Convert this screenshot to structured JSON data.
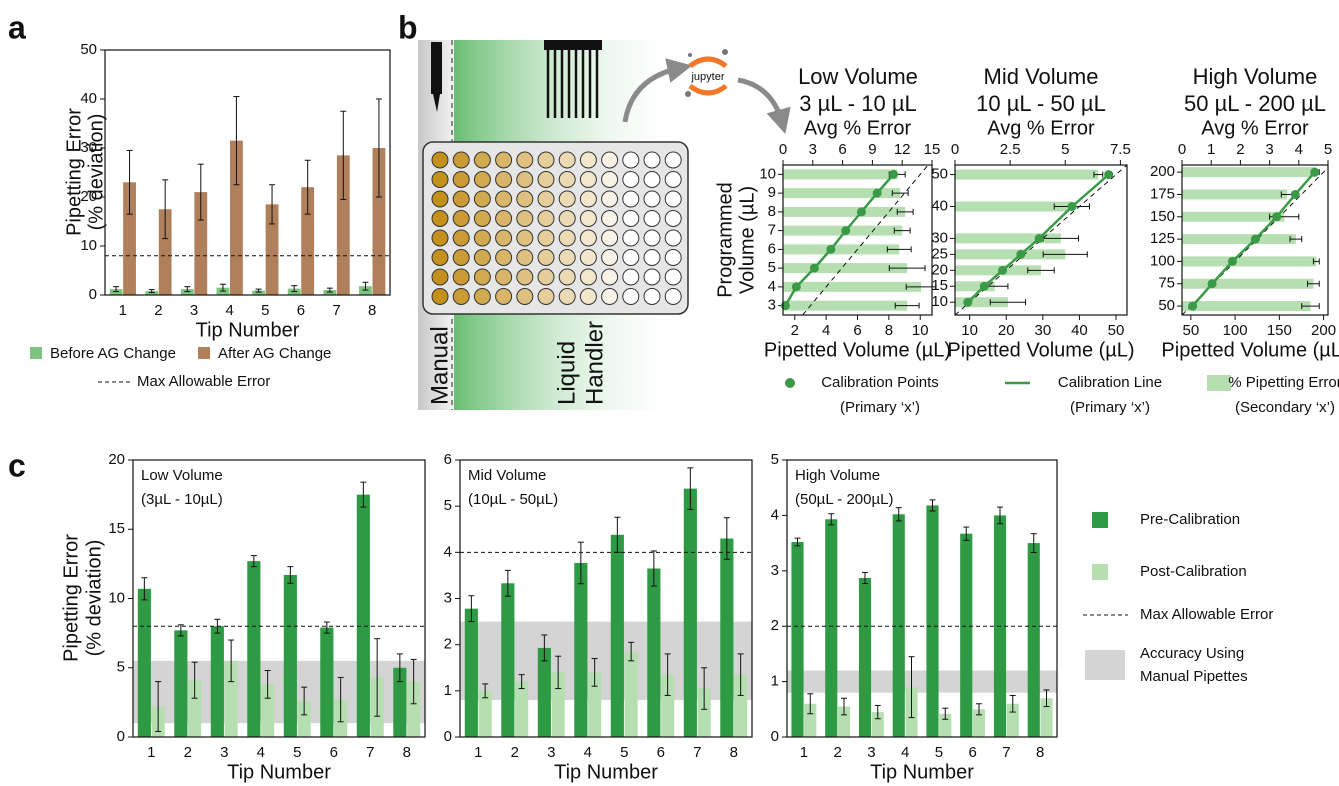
{
  "panel_labels": [
    "a",
    "b",
    "c"
  ],
  "diagram": {
    "manual": "Manual",
    "liquid_handler": [
      "Liquid",
      "Handler"
    ],
    "logo": "jupyter"
  },
  "chart_data": [
    {
      "type": "bar",
      "xlabel": "Tip Number",
      "ylabel": [
        "Pipetting Error",
        "(% deviation)"
      ],
      "categories": [
        "1",
        "2",
        "3",
        "4",
        "5",
        "6",
        "7",
        "8"
      ],
      "ylim": [
        0,
        50
      ],
      "yticks": [
        0,
        10,
        20,
        30,
        40,
        50
      ],
      "series": [
        {
          "name": "Before AG Change",
          "color": "#7cc47f",
          "values": [
            1.2,
            0.8,
            1.2,
            1.5,
            0.9,
            1.3,
            1.0,
            1.8
          ],
          "errors": [
            0.5,
            0.3,
            0.5,
            0.7,
            0.3,
            0.6,
            0.4,
            0.8
          ]
        },
        {
          "name": "After AG Change",
          "color": "#b0805c",
          "values": [
            23,
            17.5,
            21,
            31.5,
            18.5,
            22,
            28.5,
            30
          ],
          "errors": [
            6.5,
            6,
            5.7,
            9,
            4,
            5.5,
            9,
            10
          ]
        }
      ],
      "reference_line": {
        "name": "Max Allowable Error",
        "value": 8
      }
    },
    {
      "type": "calibration",
      "title": [
        "Low Volume",
        "3 µL - 10 µL"
      ],
      "x2label": "Avg % Error",
      "x2lim": [
        0,
        15
      ],
      "x2ticks": [
        0,
        3,
        6,
        9,
        12,
        15
      ],
      "xlabel": "Pipetted Volume (µL)",
      "xlim": [
        1.25,
        10.75
      ],
      "xticks": [
        2,
        4,
        6,
        8,
        10
      ],
      "ylabel": [
        "Programmed",
        "Volume (µL)"
      ],
      "ylim": [
        2.5,
        10.5
      ],
      "yticks": [
        3,
        4,
        5,
        6,
        7,
        8,
        9,
        10
      ],
      "color": "#3a9a47",
      "error_color": "#b5dfb0",
      "programmed": [
        3,
        4,
        5,
        6,
        7,
        8,
        9,
        10
      ],
      "pipetted": [
        1.4,
        2.1,
        3.25,
        4.3,
        5.25,
        6.25,
        7.25,
        8.3
      ],
      "error": [
        12.5,
        13.9,
        12.5,
        11.7,
        12,
        12.3,
        11.8,
        11.5
      ],
      "error_sd": [
        1.2,
        1.5,
        1.8,
        1.2,
        0.8,
        0.8,
        0.8,
        0.8
      ],
      "points_name": [
        "Calibration Points",
        "(Primary ‘x’)"
      ],
      "line_name": [
        "Calibration Line",
        "(Primary ‘x’)"
      ],
      "error_name": [
        "% Pipetting Error",
        "(Secondary ‘x’)"
      ]
    },
    {
      "type": "calibration",
      "title": [
        "Mid Volume",
        "10 µL - 50 µL"
      ],
      "x2label": "Avg % Error",
      "x2lim": [
        0,
        7.8
      ],
      "x2ticks": [
        0,
        2.5,
        5,
        7.5
      ],
      "xlabel": "Pipetted Volume (µL)",
      "xlim": [
        6,
        53
      ],
      "xticks": [
        10,
        20,
        30,
        40,
        50
      ],
      "ylim": [
        6,
        53
      ],
      "yticks": [
        10,
        15,
        20,
        25,
        30,
        40,
        50
      ],
      "color": "#3a9a47",
      "error_color": "#b5dfb0",
      "programmed": [
        10,
        15,
        20,
        25,
        30,
        40,
        50
      ],
      "pipetted": [
        9.5,
        14,
        19,
        24,
        29,
        38,
        48
      ],
      "error": [
        2.4,
        1.8,
        3.9,
        5.0,
        4.8,
        5.3,
        6.5
      ],
      "error_sd": [
        0.8,
        0.6,
        0.6,
        1.0,
        0.8,
        0.8,
        0.2
      ]
    },
    {
      "type": "calibration",
      "title": [
        "High Volume",
        "50 µL - 200 µL"
      ],
      "x2label": "Avg % Error",
      "x2lim": [
        0,
        5
      ],
      "x2ticks": [
        0,
        1,
        2,
        3,
        4,
        5
      ],
      "xlabel": "Pipetted Volume (µL)",
      "xlim": [
        40,
        205
      ],
      "xticks": [
        50,
        100,
        150,
        200
      ],
      "ylim": [
        40,
        208
      ],
      "yticks": [
        50,
        75,
        100,
        125,
        150,
        175,
        200
      ],
      "color": "#3a9a47",
      "error_color": "#b5dfb0",
      "programmed": [
        50,
        75,
        100,
        125,
        150,
        175,
        200
      ],
      "pipetted": [
        52,
        74,
        97,
        123,
        147,
        168,
        190
      ],
      "error": [
        4.4,
        4.5,
        4.6,
        3.9,
        3.5,
        3.6,
        4.6
      ],
      "error_sd": [
        0.3,
        0.2,
        0.1,
        0.2,
        0.5,
        0.2,
        0.1
      ]
    },
    {
      "type": "bar",
      "annotation": [
        "Low Volume",
        "(3µL - 10µL)"
      ],
      "xlabel": "Tip Number",
      "ylabel": [
        "Pipetting Error",
        "(% deviation)"
      ],
      "categories": [
        "1",
        "2",
        "3",
        "4",
        "5",
        "6",
        "7",
        "8"
      ],
      "ylim": [
        0,
        20
      ],
      "yticks": [
        0,
        5,
        10,
        15,
        20
      ],
      "series": [
        {
          "name": "Pre-Calibration",
          "color": "#2f9a44",
          "values": [
            10.7,
            7.7,
            8.0,
            12.7,
            11.7,
            7.9,
            17.5,
            5.0
          ],
          "errors": [
            0.8,
            0.4,
            0.5,
            0.4,
            0.6,
            0.4,
            0.9,
            1.0
          ]
        },
        {
          "name": "Post-Calibration",
          "color": "#b5dfb0",
          "values": [
            2.2,
            4.1,
            5.5,
            3.8,
            2.6,
            2.7,
            4.3,
            4.0
          ],
          "errors": [
            1.8,
            1.3,
            1.5,
            1.0,
            1.0,
            1.6,
            2.8,
            1.6
          ]
        }
      ],
      "reference_line": {
        "name": "Max Allowable Error",
        "value": 8
      },
      "band": {
        "name": [
          "Accuracy Using",
          "Manual Pipettes"
        ],
        "range": [
          1,
          5.5
        ],
        "color": "#d4d4d4"
      }
    },
    {
      "type": "bar",
      "annotation": [
        "Mid Volume",
        "(10µL - 50µL)"
      ],
      "xlabel": "Tip Number",
      "categories": [
        "1",
        "2",
        "3",
        "4",
        "5",
        "6",
        "7",
        "8"
      ],
      "ylim": [
        0,
        6
      ],
      "yticks": [
        0,
        1,
        2,
        3,
        4,
        5,
        6
      ],
      "series": [
        {
          "color": "#2f9a44",
          "values": [
            2.78,
            3.33,
            1.93,
            3.77,
            4.38,
            3.65,
            5.38,
            4.3
          ],
          "errors": [
            0.28,
            0.28,
            0.28,
            0.45,
            0.38,
            0.38,
            0.45,
            0.45
          ]
        },
        {
          "color": "#b5dfb0",
          "values": [
            1.0,
            1.2,
            1.4,
            1.4,
            1.85,
            1.35,
            1.05,
            1.35
          ],
          "errors": [
            0.15,
            0.15,
            0.35,
            0.3,
            0.2,
            0.45,
            0.45,
            0.45
          ]
        }
      ],
      "reference_line": {
        "value": 4
      },
      "band": {
        "range": [
          0.8,
          2.5
        ],
        "color": "#d4d4d4"
      }
    },
    {
      "type": "bar",
      "annotation": [
        "High Volume",
        "(50µL - 200µL)"
      ],
      "xlabel": "Tip Number",
      "categories": [
        "1",
        "2",
        "3",
        "4",
        "5",
        "6",
        "7",
        "8"
      ],
      "ylim": [
        0,
        5
      ],
      "yticks": [
        0,
        1,
        2,
        3,
        4,
        5
      ],
      "series": [
        {
          "color": "#2f9a44",
          "values": [
            3.52,
            3.93,
            2.87,
            4.02,
            4.18,
            3.67,
            4.0,
            3.5
          ],
          "errors": [
            0.07,
            0.1,
            0.1,
            0.12,
            0.1,
            0.12,
            0.15,
            0.17
          ]
        },
        {
          "color": "#b5dfb0",
          "values": [
            0.6,
            0.55,
            0.45,
            0.9,
            0.42,
            0.5,
            0.6,
            0.7
          ],
          "errors": [
            0.18,
            0.15,
            0.12,
            0.55,
            0.1,
            0.1,
            0.15,
            0.15
          ]
        }
      ],
      "reference_line": {
        "value": 2
      },
      "band": {
        "range": [
          0.8,
          1.2
        ],
        "color": "#d4d4d4"
      }
    }
  ]
}
